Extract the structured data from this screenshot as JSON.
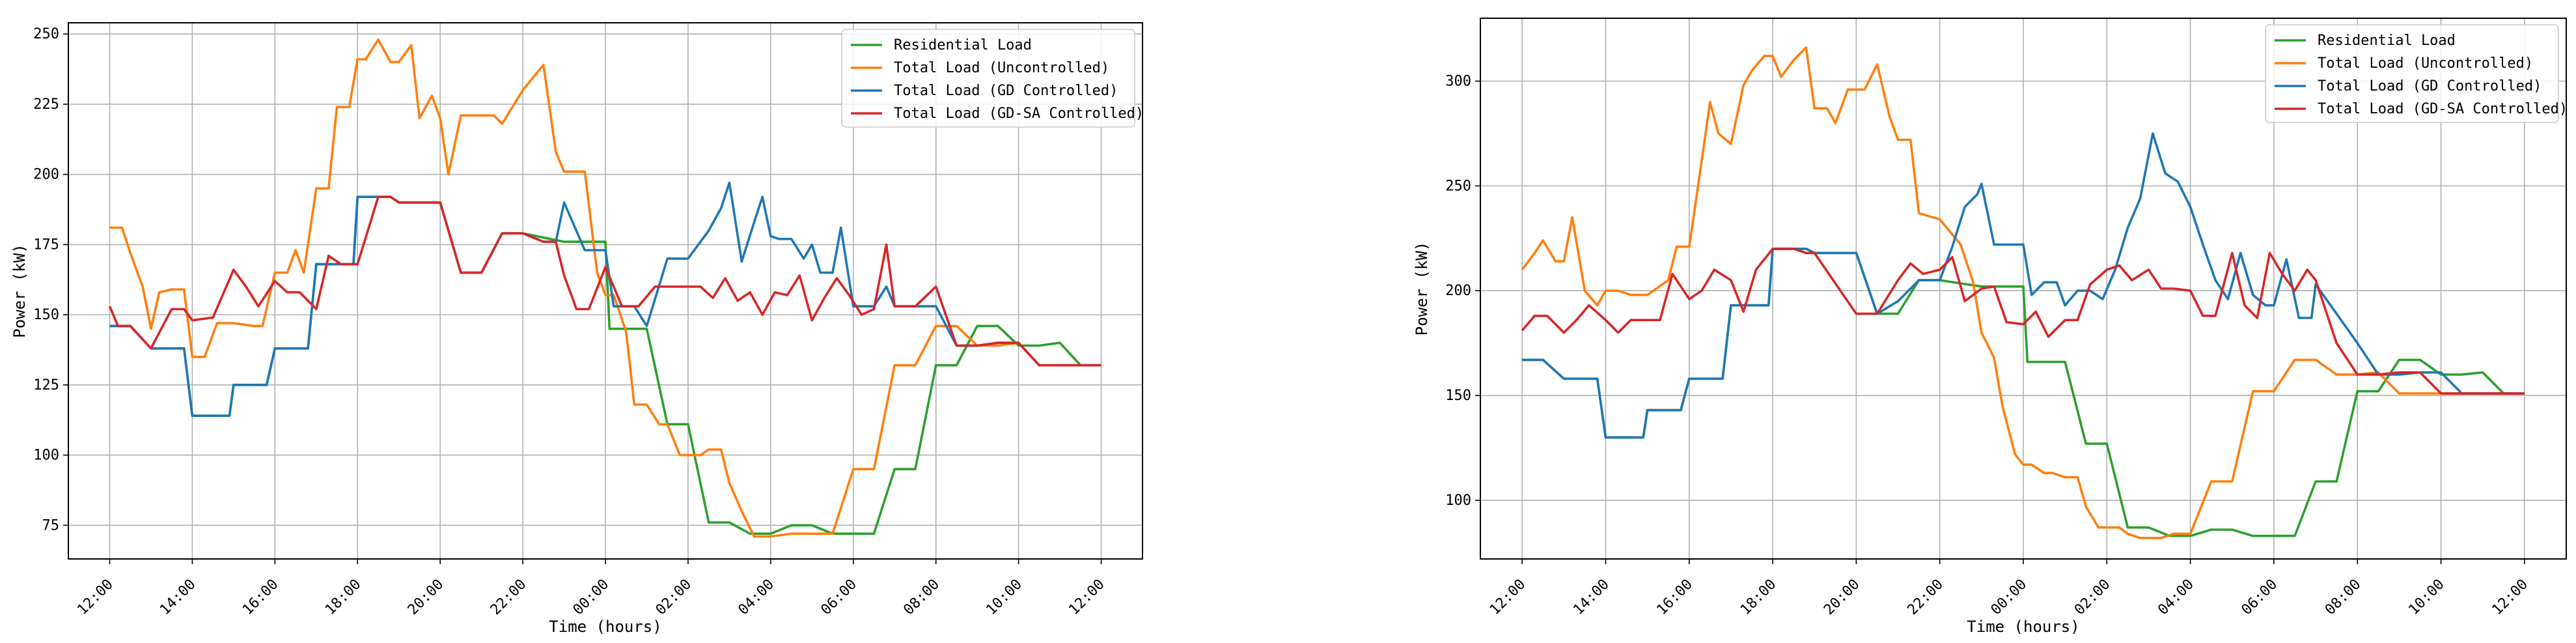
{
  "chart_data": [
    {
      "type": "line",
      "title": "",
      "xlabel": "Time (hours)",
      "ylabel": "Power (kW)",
      "x_tick_labels": [
        "12:00",
        "14:00",
        "16:00",
        "18:00",
        "20:00",
        "22:00",
        "00:00",
        "02:00",
        "04:00",
        "06:00",
        "08:00",
        "10:00",
        "12:00"
      ],
      "xlim": [
        -1,
        25
      ],
      "ylim": [
        63,
        254
      ],
      "yticks": [
        75,
        100,
        125,
        150,
        175,
        200,
        225,
        250
      ],
      "grid": true,
      "legend_position": "top-right",
      "x_unit": "hours after 12:00",
      "series": [
        {
          "name": "Residential Load",
          "color": "#2ca02c",
          "x": [
            0,
            0.4,
            0.5,
            1,
            1.8,
            2,
            2.9,
            3,
            3.8,
            4,
            4.8,
            5,
            5.9,
            6,
            6.5,
            6.8,
            7,
            8,
            8.5,
            9,
            9.5,
            10,
            11,
            12,
            12.1,
            13,
            13.5,
            14,
            14.5,
            15,
            15.5,
            16,
            16.5,
            17,
            17.5,
            18,
            18.5,
            19,
            19.5,
            20,
            20.5,
            21,
            21.5,
            22,
            22.5,
            23,
            23.5,
            24
          ],
          "y": [
            146,
            146,
            146,
            138,
            138,
            114,
            114,
            125,
            125,
            138,
            138,
            168,
            168,
            192,
            192,
            192,
            190,
            190,
            165,
            165,
            179,
            179,
            176,
            176,
            145,
            145,
            111,
            111,
            76,
            76,
            72,
            72,
            75,
            75,
            72,
            72,
            72,
            95,
            95,
            132,
            132,
            146,
            146,
            139,
            139,
            140,
            132,
            132
          ]
        },
        {
          "name": "Total Load (Uncontrolled)",
          "color": "#ff7f0e",
          "x": [
            0,
            0.3,
            0.5,
            0.8,
            1,
            1.2,
            1.5,
            1.8,
            2,
            2.3,
            2.6,
            3,
            3.5,
            3.7,
            4,
            4.3,
            4.5,
            4.7,
            5,
            5.3,
            5.5,
            5.8,
            6,
            6.2,
            6.5,
            6.8,
            7,
            7.3,
            7.5,
            7.8,
            8,
            8.2,
            8.5,
            8.8,
            9,
            9.3,
            9.5,
            10,
            10.5,
            10.8,
            11,
            11.3,
            11.5,
            11.8,
            12,
            12.2,
            12.5,
            12.7,
            13,
            13.3,
            13.5,
            13.8,
            14,
            14.3,
            14.5,
            14.8,
            15,
            15.3,
            15.6,
            16,
            16.5,
            17,
            17.5,
            18,
            18.5,
            19,
            19.5,
            20,
            20.5,
            21,
            21.5,
            22,
            22.5,
            23,
            23.5,
            24
          ],
          "y": [
            181,
            181,
            172,
            160,
            145,
            158,
            159,
            159,
            135,
            135,
            147,
            147,
            146,
            146,
            165,
            165,
            173,
            165,
            195,
            195,
            224,
            224,
            241,
            241,
            248,
            240,
            240,
            246,
            220,
            228,
            220,
            200,
            221,
            221,
            221,
            221,
            218,
            230,
            239,
            208,
            201,
            201,
            201,
            165,
            157,
            157,
            144,
            118,
            118,
            111,
            111,
            100,
            100,
            100,
            102,
            102,
            90,
            80,
            71,
            71,
            72,
            72,
            72,
            95,
            95,
            132,
            132,
            146,
            146,
            139,
            139,
            140,
            132,
            132,
            132,
            132
          ]
        },
        {
          "name": "Total Load (GD Controlled)",
          "color": "#1f77b4",
          "x": [
            0,
            0.4,
            0.5,
            1,
            1.8,
            2,
            2.9,
            3,
            3.8,
            4,
            4.8,
            5,
            5.9,
            6,
            6.5,
            6.8,
            7,
            8,
            8.5,
            9,
            9.5,
            10,
            10.5,
            10.8,
            11,
            11.5,
            11.8,
            12,
            12.2,
            12.5,
            12.7,
            13,
            13.5,
            14,
            14.5,
            14.8,
            15,
            15.3,
            15.6,
            15.8,
            16,
            16.2,
            16.5,
            16.8,
            17,
            17.2,
            17.5,
            17.7,
            18,
            18.3,
            18.5,
            18.8,
            19,
            19.5,
            20,
            20.5,
            21,
            21.5,
            22,
            22.5,
            23,
            23.5,
            24
          ],
          "y": [
            146,
            146,
            146,
            138,
            138,
            114,
            114,
            125,
            125,
            138,
            138,
            168,
            168,
            192,
            192,
            192,
            190,
            190,
            165,
            165,
            179,
            179,
            176,
            176,
            190,
            173,
            173,
            173,
            153,
            153,
            153,
            146,
            170,
            170,
            180,
            188,
            197,
            169,
            183,
            192,
            178,
            177,
            177,
            170,
            175,
            165,
            165,
            181,
            153,
            153,
            153,
            160,
            153,
            153,
            153,
            139,
            139,
            140,
            140,
            132,
            132,
            132,
            132
          ]
        },
        {
          "name": "Total Load (GD-SA Controlled)",
          "color": "#d62728",
          "x": [
            0,
            0.2,
            0.5,
            1,
            1.5,
            1.8,
            2,
            2.5,
            3,
            3.3,
            3.6,
            4,
            4.3,
            4.6,
            5,
            5.3,
            5.6,
            6,
            6.5,
            6.8,
            7,
            8,
            8.5,
            9,
            9.5,
            10,
            10.5,
            10.8,
            11,
            11.3,
            11.6,
            12,
            12.4,
            12.8,
            13.2,
            13.6,
            14,
            14.3,
            14.6,
            14.9,
            15.2,
            15.5,
            15.8,
            16.1,
            16.4,
            16.7,
            17,
            17.3,
            17.6,
            17.9,
            18.2,
            18.5,
            18.8,
            19,
            19.5,
            20,
            20.5,
            21,
            21.5,
            22,
            22.5,
            23,
            23.5,
            24
          ],
          "y": [
            153,
            146,
            146,
            138,
            152,
            152,
            148,
            149,
            166,
            160,
            153,
            162,
            158,
            158,
            152,
            171,
            168,
            168,
            192,
            192,
            190,
            190,
            165,
            165,
            179,
            179,
            176,
            176,
            164,
            152,
            152,
            167,
            153,
            153,
            160,
            160,
            160,
            160,
            156,
            163,
            155,
            158,
            150,
            158,
            157,
            164,
            148,
            156,
            163,
            157,
            150,
            152,
            175,
            153,
            153,
            160,
            139,
            139,
            140,
            140,
            132,
            132,
            132,
            132
          ]
        }
      ]
    },
    {
      "type": "line",
      "title": "",
      "xlabel": "Time (hours)",
      "ylabel": "Power (kW)",
      "x_tick_labels": [
        "12:00",
        "14:00",
        "16:00",
        "18:00",
        "20:00",
        "22:00",
        "00:00",
        "02:00",
        "04:00",
        "06:00",
        "08:00",
        "10:00",
        "12:00"
      ],
      "xlim": [
        -1,
        25
      ],
      "ylim": [
        72,
        330
      ],
      "yticks": [
        100,
        150,
        200,
        250,
        300
      ],
      "grid": true,
      "legend_position": "top-right",
      "x_unit": "hours after 12:00",
      "series": [
        {
          "name": "Residential Load",
          "color": "#2ca02c",
          "x": [
            0,
            0.4,
            0.5,
            1,
            1.8,
            2,
            2.9,
            3,
            3.8,
            4,
            4.8,
            5,
            5.9,
            6,
            6.5,
            6.8,
            7,
            8,
            8.5,
            9,
            9.5,
            10,
            11,
            12,
            12.1,
            13,
            13.5,
            14,
            14.5,
            15,
            15.5,
            16,
            16.5,
            17,
            17.5,
            18,
            18.5,
            19,
            19.5,
            20,
            20.5,
            21,
            21.5,
            22,
            22.5,
            23,
            23.5,
            24
          ],
          "y": [
            167,
            167,
            167,
            158,
            158,
            130,
            130,
            143,
            143,
            158,
            158,
            193,
            193,
            220,
            220,
            220,
            218,
            218,
            189,
            189,
            205,
            205,
            202,
            202,
            166,
            166,
            127,
            127,
            87,
            87,
            83,
            83,
            86,
            86,
            83,
            83,
            83,
            109,
            109,
            152,
            152,
            167,
            167,
            160,
            160,
            161,
            151,
            151
          ]
        },
        {
          "name": "Total Load (Uncontrolled)",
          "color": "#ff7f0e",
          "x": [
            0,
            0.3,
            0.5,
            0.8,
            1,
            1.2,
            1.5,
            1.8,
            2,
            2.3,
            2.6,
            3,
            3.5,
            3.7,
            4,
            4.3,
            4.5,
            4.7,
            5,
            5.3,
            5.5,
            5.8,
            6,
            6.2,
            6.5,
            6.8,
            7,
            7.3,
            7.5,
            7.8,
            8,
            8.2,
            8.5,
            8.8,
            9,
            9.3,
            9.5,
            10,
            10.5,
            10.8,
            11,
            11.3,
            11.5,
            11.8,
            12,
            12.2,
            12.5,
            12.7,
            13,
            13.3,
            13.5,
            13.8,
            14,
            14.3,
            14.5,
            14.8,
            15,
            15.3,
            15.6,
            16,
            16.5,
            17,
            17.5,
            18,
            18.5,
            19,
            19.5,
            20,
            20.5,
            21,
            21.5,
            22,
            22.5,
            23,
            23.5,
            24
          ],
          "y": [
            210,
            218,
            224,
            214,
            214,
            235,
            200,
            193,
            200,
            200,
            198,
            198,
            205,
            221,
            221,
            262,
            290,
            275,
            270,
            298,
            305,
            312,
            312,
            302,
            310,
            316,
            287,
            287,
            280,
            296,
            296,
            296,
            308,
            283,
            272,
            272,
            237,
            234,
            222,
            204,
            180,
            168,
            145,
            122,
            117,
            117,
            113,
            113,
            111,
            111,
            97,
            87,
            87,
            87,
            84,
            82,
            82,
            82,
            84,
            84,
            109,
            109,
            152,
            152,
            167,
            167,
            160,
            160,
            161,
            151,
            151,
            151,
            151,
            151,
            151,
            151
          ]
        },
        {
          "name": "Total Load (GD Controlled)",
          "color": "#1f77b4",
          "x": [
            0,
            0.4,
            0.5,
            1,
            1.8,
            2,
            2.9,
            3,
            3.8,
            4,
            4.8,
            5,
            5.9,
            6,
            6.5,
            6.8,
            7,
            8,
            8.5,
            9,
            9.5,
            10,
            10.3,
            10.6,
            10.9,
            11,
            11.3,
            11.6,
            12,
            12.2,
            12.5,
            12.8,
            13,
            13.3,
            13.6,
            13.9,
            14.2,
            14.5,
            14.8,
            15.1,
            15.4,
            15.7,
            16,
            16.3,
            16.6,
            16.9,
            17.2,
            17.5,
            17.8,
            18,
            18.3,
            18.6,
            18.9,
            19,
            19.5,
            20,
            20.5,
            21,
            21.5,
            22,
            22.5,
            23,
            23.5,
            24
          ],
          "y": [
            167,
            167,
            167,
            158,
            158,
            130,
            130,
            143,
            143,
            158,
            158,
            193,
            193,
            220,
            220,
            220,
            218,
            218,
            189,
            195,
            205,
            205,
            221,
            240,
            246,
            251,
            222,
            222,
            222,
            198,
            204,
            204,
            193,
            200,
            200,
            196,
            210,
            230,
            244,
            275,
            256,
            252,
            240,
            222,
            205,
            196,
            218,
            198,
            193,
            193,
            215,
            187,
            187,
            203,
            189,
            175,
            160,
            160,
            161,
            161,
            151,
            151,
            151,
            151
          ]
        },
        {
          "name": "Total Load (GD-SA Controlled)",
          "color": "#d62728",
          "x": [
            0,
            0.3,
            0.6,
            1,
            1.3,
            1.6,
            2,
            2.3,
            2.6,
            3,
            3.3,
            3.6,
            4,
            4.3,
            4.6,
            5,
            5.3,
            5.6,
            6,
            6.5,
            6.8,
            7,
            8,
            8.5,
            9,
            9.3,
            9.6,
            10,
            10.3,
            10.6,
            11,
            11.3,
            11.6,
            12,
            12.3,
            12.6,
            13,
            13.3,
            13.6,
            14,
            14.3,
            14.6,
            15,
            15.3,
            15.6,
            16,
            16.3,
            16.6,
            17,
            17.3,
            17.6,
            17.9,
            18.2,
            18.5,
            18.8,
            19,
            19.5,
            20,
            20.5,
            21,
            21.5,
            22,
            22.5,
            23,
            23.5,
            24
          ],
          "y": [
            181,
            188,
            188,
            180,
            186,
            193,
            186,
            180,
            186,
            186,
            186,
            208,
            196,
            200,
            210,
            205,
            190,
            210,
            220,
            220,
            218,
            218,
            189,
            189,
            205,
            213,
            208,
            210,
            216,
            195,
            201,
            202,
            185,
            184,
            190,
            178,
            186,
            186,
            203,
            210,
            212,
            205,
            210,
            201,
            201,
            200,
            188,
            188,
            218,
            193,
            187,
            218,
            208,
            200,
            210,
            205,
            175,
            160,
            160,
            161,
            161,
            151,
            151,
            151,
            151,
            151
          ]
        }
      ]
    }
  ]
}
